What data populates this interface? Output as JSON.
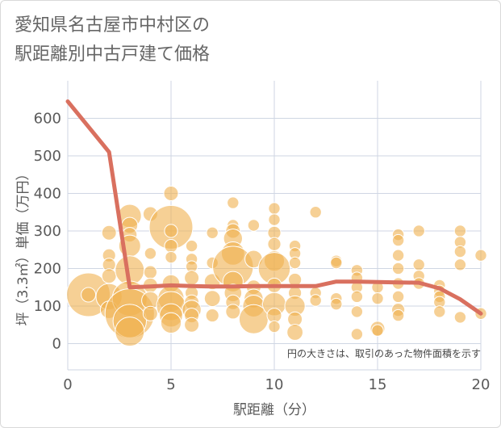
{
  "chart_data": {
    "type": "scatter",
    "title_lines": [
      "愛知県名古屋市中村区の",
      "駅距離別中古戸建て価格"
    ],
    "xlabel": "駅距離（分）",
    "ylabel": "坪（3.3㎡）単価（万円）",
    "note": "円の大きさは、取引のあった物件面積を示す",
    "xlim": [
      0,
      20
    ],
    "ylim": [
      -70,
      700
    ],
    "xticks": [
      0,
      5,
      10,
      15,
      20
    ],
    "yticks": [
      0,
      100,
      200,
      300,
      400,
      500,
      600
    ],
    "grid": true,
    "colors": {
      "bubble": "#f0b14e",
      "line": "#d9705f",
      "grid": "#cfd6e3",
      "axis_text": "#5a5a5a"
    },
    "line_series": {
      "x": [
        0,
        2,
        3,
        4,
        5,
        6,
        7,
        8,
        9,
        10,
        11,
        12,
        13,
        14,
        15,
        16,
        17,
        18,
        19,
        20
      ],
      "y": [
        645,
        510,
        150,
        152,
        155,
        153,
        152,
        152,
        153,
        153,
        153,
        153,
        165,
        165,
        164,
        163,
        162,
        147,
        118,
        80
      ]
    },
    "points": [
      {
        "x": 1,
        "y": 130,
        "s": 3.0
      },
      {
        "x": 1,
        "y": 130,
        "s": 1.0
      },
      {
        "x": 2,
        "y": 295,
        "s": 1.0
      },
      {
        "x": 2,
        "y": 235,
        "s": 0.9
      },
      {
        "x": 2,
        "y": 210,
        "s": 0.9
      },
      {
        "x": 2,
        "y": 180,
        "s": 1.0
      },
      {
        "x": 2,
        "y": 125,
        "s": 1.8
      },
      {
        "x": 2,
        "y": 90,
        "s": 1.2
      },
      {
        "x": 3,
        "y": 340,
        "s": 1.6
      },
      {
        "x": 3,
        "y": 315,
        "s": 1.1
      },
      {
        "x": 3,
        "y": 290,
        "s": 1.0
      },
      {
        "x": 3,
        "y": 260,
        "s": 1.5
      },
      {
        "x": 3,
        "y": 195,
        "s": 2.0
      },
      {
        "x": 3,
        "y": 120,
        "s": 2.4
      },
      {
        "x": 3,
        "y": 80,
        "s": 3.4
      },
      {
        "x": 3,
        "y": 60,
        "s": 2.3
      },
      {
        "x": 3,
        "y": 32,
        "s": 2.0
      },
      {
        "x": 4,
        "y": 345,
        "s": 1.0
      },
      {
        "x": 4,
        "y": 240,
        "s": 0.8
      },
      {
        "x": 4,
        "y": 190,
        "s": 0.9
      },
      {
        "x": 4,
        "y": 155,
        "s": 1.0
      },
      {
        "x": 4,
        "y": 115,
        "s": 1.2
      },
      {
        "x": 4,
        "y": 80,
        "s": 1.0
      },
      {
        "x": 5,
        "y": 400,
        "s": 1.0
      },
      {
        "x": 5,
        "y": 310,
        "s": 3.0
      },
      {
        "x": 5,
        "y": 300,
        "s": 0.9
      },
      {
        "x": 5,
        "y": 260,
        "s": 0.9
      },
      {
        "x": 5,
        "y": 230,
        "s": 0.8
      },
      {
        "x": 5,
        "y": 160,
        "s": 1.2
      },
      {
        "x": 5,
        "y": 120,
        "s": 1.8
      },
      {
        "x": 5,
        "y": 100,
        "s": 2.0
      },
      {
        "x": 5,
        "y": 75,
        "s": 1.6
      },
      {
        "x": 5,
        "y": 55,
        "s": 1.4
      },
      {
        "x": 6,
        "y": 260,
        "s": 0.8
      },
      {
        "x": 6,
        "y": 225,
        "s": 0.8
      },
      {
        "x": 6,
        "y": 205,
        "s": 0.8
      },
      {
        "x": 6,
        "y": 175,
        "s": 1.0
      },
      {
        "x": 6,
        "y": 135,
        "s": 0.9
      },
      {
        "x": 6,
        "y": 110,
        "s": 1.0
      },
      {
        "x": 6,
        "y": 90,
        "s": 1.3
      },
      {
        "x": 6,
        "y": 75,
        "s": 1.0
      },
      {
        "x": 6,
        "y": 50,
        "s": 1.0
      },
      {
        "x": 7,
        "y": 295,
        "s": 0.8
      },
      {
        "x": 7,
        "y": 215,
        "s": 0.8
      },
      {
        "x": 7,
        "y": 165,
        "s": 1.1
      },
      {
        "x": 7,
        "y": 120,
        "s": 1.1
      },
      {
        "x": 7,
        "y": 75,
        "s": 0.9
      },
      {
        "x": 8,
        "y": 375,
        "s": 0.8
      },
      {
        "x": 8,
        "y": 315,
        "s": 0.8
      },
      {
        "x": 8,
        "y": 300,
        "s": 1.0
      },
      {
        "x": 8,
        "y": 280,
        "s": 1.3
      },
      {
        "x": 8,
        "y": 240,
        "s": 1.6
      },
      {
        "x": 8,
        "y": 205,
        "s": 2.8
      },
      {
        "x": 8,
        "y": 165,
        "s": 1.4
      },
      {
        "x": 8,
        "y": 135,
        "s": 1.2
      },
      {
        "x": 8,
        "y": 110,
        "s": 1.0
      },
      {
        "x": 8,
        "y": 85,
        "s": 1.0
      },
      {
        "x": 9,
        "y": 315,
        "s": 0.8
      },
      {
        "x": 9,
        "y": 225,
        "s": 1.2
      },
      {
        "x": 9,
        "y": 150,
        "s": 1.0
      },
      {
        "x": 9,
        "y": 120,
        "s": 1.3
      },
      {
        "x": 9,
        "y": 100,
        "s": 1.5
      },
      {
        "x": 9,
        "y": 65,
        "s": 2.0
      },
      {
        "x": 10,
        "y": 360,
        "s": 0.8
      },
      {
        "x": 10,
        "y": 330,
        "s": 0.8
      },
      {
        "x": 10,
        "y": 295,
        "s": 0.9
      },
      {
        "x": 10,
        "y": 265,
        "s": 0.9
      },
      {
        "x": 10,
        "y": 220,
        "s": 1.4
      },
      {
        "x": 10,
        "y": 200,
        "s": 2.2
      },
      {
        "x": 10,
        "y": 155,
        "s": 1.0
      },
      {
        "x": 10,
        "y": 105,
        "s": 1.6
      },
      {
        "x": 10,
        "y": 75,
        "s": 1.0
      },
      {
        "x": 10,
        "y": 45,
        "s": 0.8
      },
      {
        "x": 11,
        "y": 260,
        "s": 0.8
      },
      {
        "x": 11,
        "y": 240,
        "s": 0.8
      },
      {
        "x": 11,
        "y": 215,
        "s": 0.8
      },
      {
        "x": 11,
        "y": 170,
        "s": 0.9
      },
      {
        "x": 11,
        "y": 135,
        "s": 0.9
      },
      {
        "x": 11,
        "y": 100,
        "s": 1.4
      },
      {
        "x": 11,
        "y": 65,
        "s": 1.0
      },
      {
        "x": 11,
        "y": 30,
        "s": 1.1
      },
      {
        "x": 12,
        "y": 350,
        "s": 0.8
      },
      {
        "x": 12,
        "y": 135,
        "s": 0.8
      },
      {
        "x": 12,
        "y": 115,
        "s": 0.8
      },
      {
        "x": 13,
        "y": 220,
        "s": 0.8
      },
      {
        "x": 13,
        "y": 215,
        "s": 0.8
      },
      {
        "x": 13,
        "y": 120,
        "s": 0.8
      },
      {
        "x": 13,
        "y": 105,
        "s": 0.8
      },
      {
        "x": 14,
        "y": 195,
        "s": 0.8
      },
      {
        "x": 14,
        "y": 175,
        "s": 0.8
      },
      {
        "x": 14,
        "y": 150,
        "s": 0.8
      },
      {
        "x": 14,
        "y": 125,
        "s": 0.8
      },
      {
        "x": 14,
        "y": 85,
        "s": 0.8
      },
      {
        "x": 14,
        "y": 25,
        "s": 0.8
      },
      {
        "x": 15,
        "y": 150,
        "s": 0.8
      },
      {
        "x": 15,
        "y": 120,
        "s": 0.8
      },
      {
        "x": 15,
        "y": 40,
        "s": 1.0
      },
      {
        "x": 15,
        "y": 35,
        "s": 0.8
      },
      {
        "x": 16,
        "y": 290,
        "s": 0.8
      },
      {
        "x": 16,
        "y": 275,
        "s": 0.8
      },
      {
        "x": 16,
        "y": 235,
        "s": 0.8
      },
      {
        "x": 16,
        "y": 200,
        "s": 0.8
      },
      {
        "x": 16,
        "y": 160,
        "s": 0.8
      },
      {
        "x": 16,
        "y": 125,
        "s": 0.8
      },
      {
        "x": 16,
        "y": 90,
        "s": 0.9
      },
      {
        "x": 16,
        "y": 75,
        "s": 0.8
      },
      {
        "x": 17,
        "y": 300,
        "s": 0.8
      },
      {
        "x": 17,
        "y": 210,
        "s": 0.8
      },
      {
        "x": 17,
        "y": 180,
        "s": 0.8
      },
      {
        "x": 17,
        "y": 160,
        "s": 0.8
      },
      {
        "x": 18,
        "y": 155,
        "s": 0.8
      },
      {
        "x": 18,
        "y": 140,
        "s": 0.8
      },
      {
        "x": 18,
        "y": 125,
        "s": 0.8
      },
      {
        "x": 18,
        "y": 110,
        "s": 0.8
      },
      {
        "x": 18,
        "y": 85,
        "s": 0.8
      },
      {
        "x": 19,
        "y": 300,
        "s": 0.8
      },
      {
        "x": 19,
        "y": 270,
        "s": 0.8
      },
      {
        "x": 19,
        "y": 245,
        "s": 0.8
      },
      {
        "x": 19,
        "y": 210,
        "s": 0.8
      },
      {
        "x": 19,
        "y": 70,
        "s": 0.8
      },
      {
        "x": 20,
        "y": 235,
        "s": 0.8
      },
      {
        "x": 20,
        "y": 80,
        "s": 0.8
      }
    ]
  }
}
